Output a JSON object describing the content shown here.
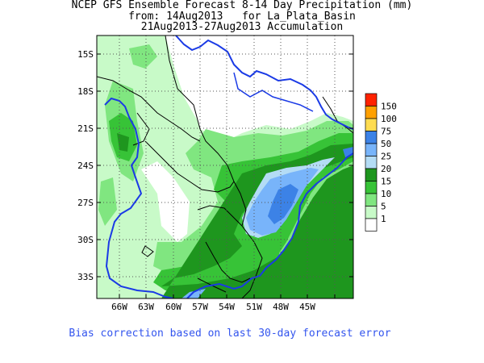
{
  "title": {
    "line1": "NCEP GFS Ensemble Forecast 8-14 Day Precipitation (mm)",
    "line2": "from: 14Aug2013   for La_Plata_Basin",
    "line3": "21Aug2013-27Aug2013 Accumulation"
  },
  "axes": {
    "lat_labels": [
      "15S",
      "18S",
      "21S",
      "24S",
      "27S",
      "30S",
      "33S"
    ],
    "lon_labels": [
      "66W",
      "63W",
      "60W",
      "57W",
      "54W",
      "51W",
      "48W",
      "45W"
    ]
  },
  "legend": {
    "levels": [
      {
        "label": "150",
        "color": "#ff2200"
      },
      {
        "label": "100",
        "color": "#ffa000"
      },
      {
        "label": "75",
        "color": "#ffdc50"
      },
      {
        "label": "50",
        "color": "#3c82e6"
      },
      {
        "label": "25",
        "color": "#78b4fa"
      },
      {
        "label": "20",
        "color": "#b4dcf5"
      },
      {
        "label": "15",
        "color": "#1e961e"
      },
      {
        "label": "10",
        "color": "#37c337"
      },
      {
        "label": "5",
        "color": "#80e680"
      },
      {
        "label": "1",
        "color": "#c8fac8"
      },
      {
        "label": "",
        "color": "#ffffff"
      }
    ]
  },
  "footer": "Bias correction based on last 30-day forecast error",
  "colors": {
    "basin_outline": "#1a3ae6",
    "border": "#000000"
  }
}
